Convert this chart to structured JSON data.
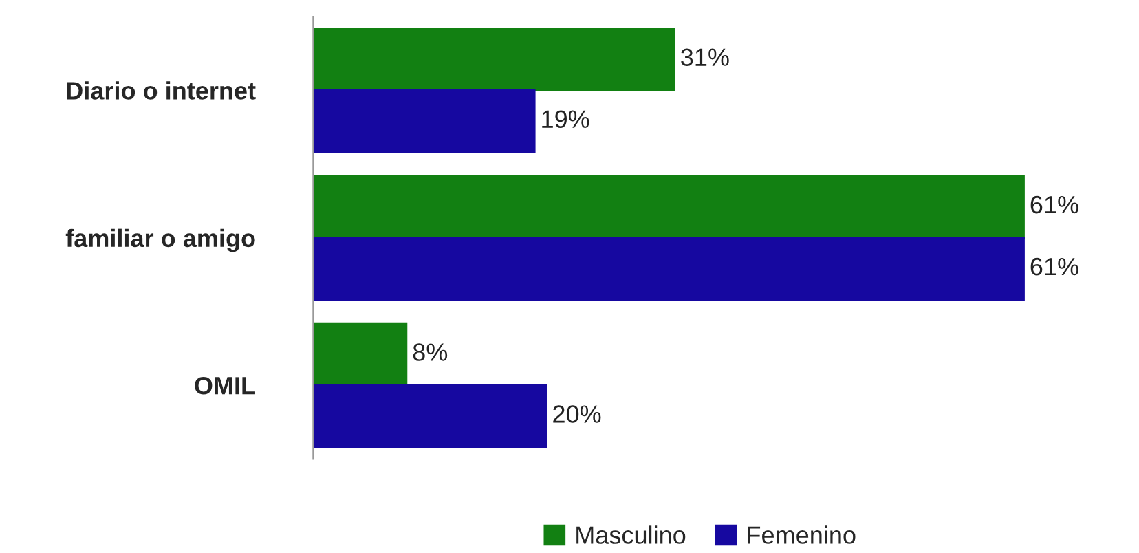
{
  "chart_data": {
    "type": "bar",
    "orientation": "horizontal",
    "categories": [
      "Diario o internet",
      "familiar o amigo",
      "OMIL"
    ],
    "series": [
      {
        "name": "Masculino",
        "color": "#128012",
        "values": [
          31,
          61,
          8
        ],
        "value_labels": [
          "31%",
          "61%",
          "8%"
        ]
      },
      {
        "name": "Femenino",
        "color": "#1608a0",
        "values": [
          19,
          61,
          20
        ],
        "value_labels": [
          "19%",
          "61%",
          "20%"
        ]
      }
    ],
    "legend": "bottom",
    "grid": false,
    "tick_labels": "y"
  }
}
